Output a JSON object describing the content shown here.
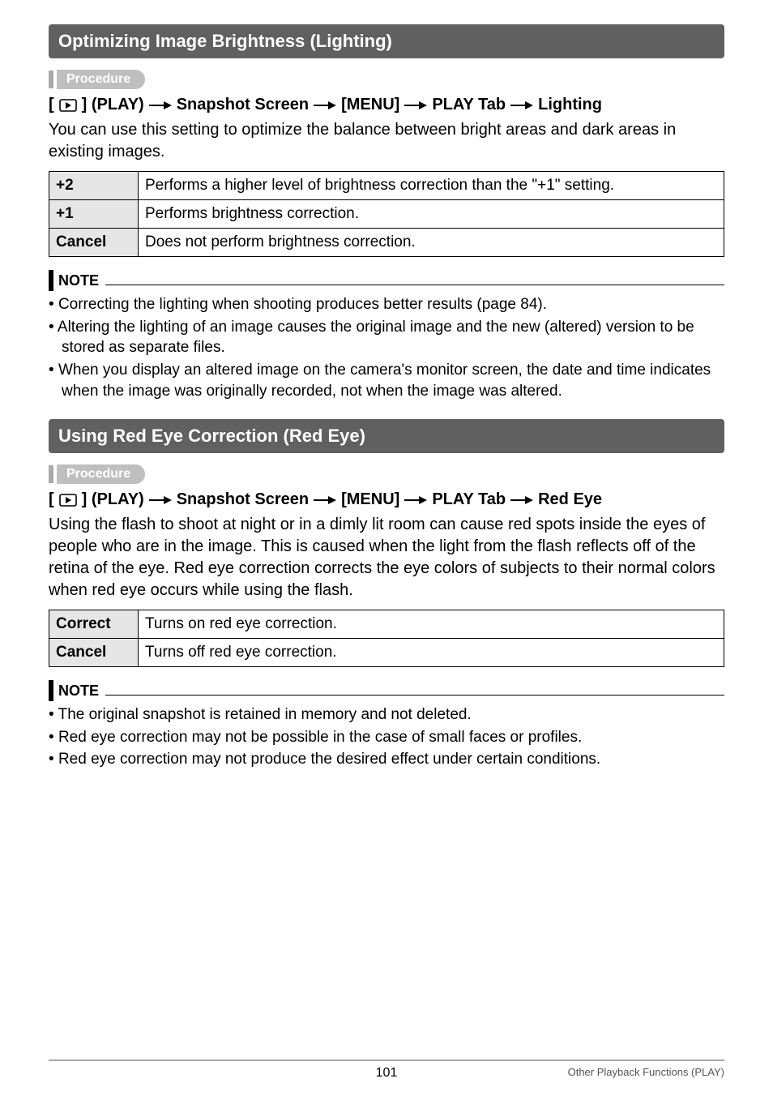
{
  "section1": {
    "title": "Optimizing Image Brightness (Lighting)",
    "procedure_label": "Procedure",
    "path_parts": [
      "[",
      "PLAY_ICON",
      "] (PLAY)",
      "ARROW",
      "Snapshot Screen",
      "ARROW",
      "[MENU]",
      "ARROW",
      "PLAY Tab",
      "ARROW",
      "Lighting"
    ],
    "intro": "You can use this setting to optimize the balance between bright areas and dark areas in existing images.",
    "table": [
      {
        "key": "+2",
        "val": "Performs a higher level of brightness correction than the \"+1\" setting."
      },
      {
        "key": "+1",
        "val": "Performs brightness correction."
      },
      {
        "key": "Cancel",
        "val": "Does not perform brightness correction."
      }
    ],
    "note_label": "NOTE",
    "notes": [
      "Correcting the lighting when shooting produces better results (page 84).",
      "Altering the lighting of an image causes the original image and the new (altered) version to be stored as separate files.",
      "When you display an altered image on the camera's monitor screen, the date and time indicates when the image was originally recorded, not when the image was altered."
    ]
  },
  "section2": {
    "title": "Using Red Eye Correction (Red Eye)",
    "procedure_label": "Procedure",
    "path_parts": [
      "[",
      "PLAY_ICON",
      "] (PLAY)",
      "ARROW",
      "Snapshot Screen",
      "ARROW",
      "[MENU]",
      "ARROW",
      "PLAY Tab",
      "ARROW",
      "Red Eye"
    ],
    "intro": "Using the flash to shoot at night or in a dimly lit room can cause red spots inside the eyes of people who are in the image. This is caused when the light from the flash reflects off of the retina of the eye. Red eye correction corrects the eye colors of subjects to their normal colors when red eye occurs while using the flash.",
    "table": [
      {
        "key": "Correct",
        "val": "Turns on red eye correction."
      },
      {
        "key": "Cancel",
        "val": "Turns off red eye correction."
      }
    ],
    "note_label": "NOTE",
    "notes": [
      "The original snapshot is retained in memory and not deleted.",
      "Red eye correction may not be possible in the case of small faces or profiles.",
      "Red eye correction may not produce the desired effect under certain conditions."
    ]
  },
  "footer": {
    "page": "101",
    "caption": "Other Playback Functions (PLAY)"
  }
}
